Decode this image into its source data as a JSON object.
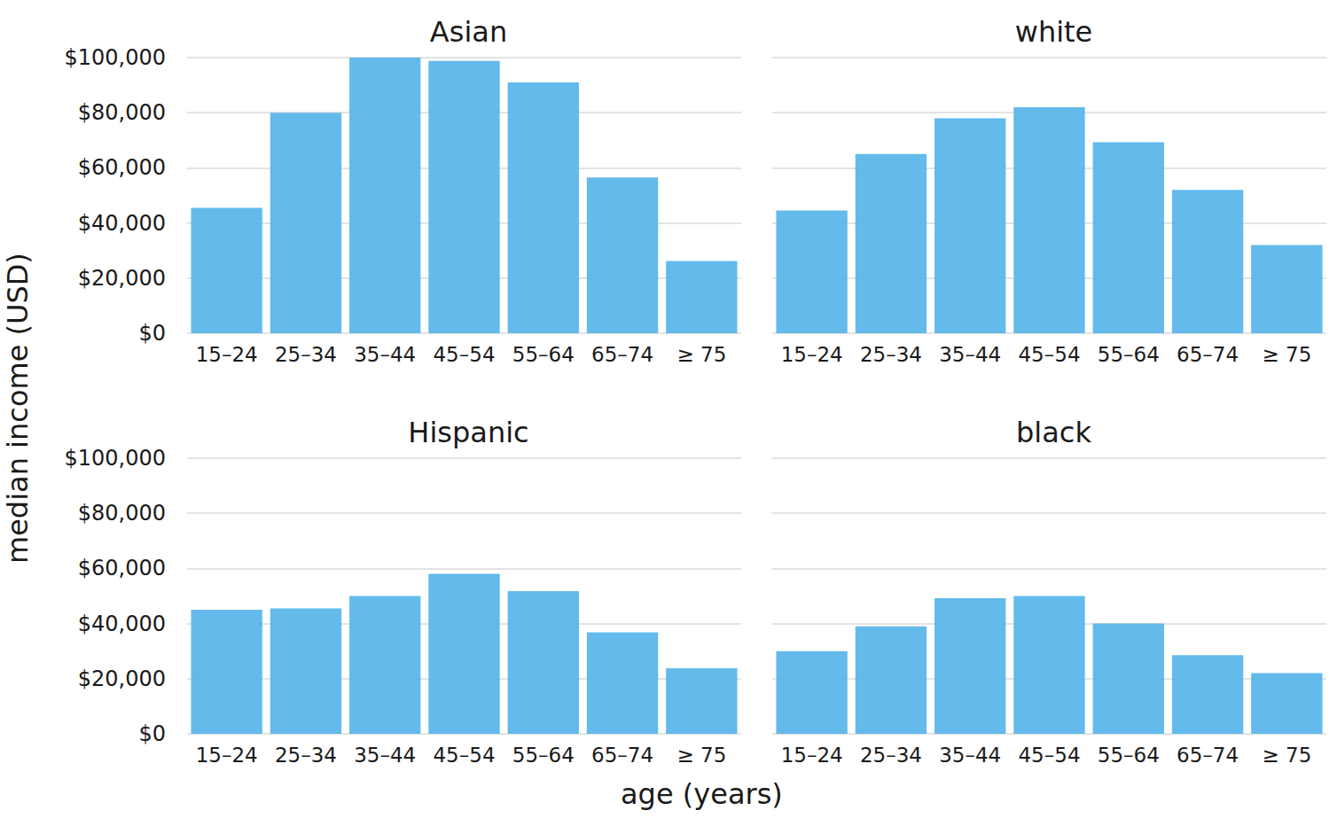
{
  "x_label": "age (years)",
  "y_label": "median income (USD)",
  "chart_data": [
    {
      "type": "bar",
      "title": "Asian",
      "categories": [
        "15–24",
        "25–34",
        "35–44",
        "45–54",
        "55–64",
        "65–74",
        "≥ 75"
      ],
      "values": [
        45500,
        80000,
        100000,
        98800,
        91000,
        56500,
        26200
      ],
      "color": "#56B4E9",
      "ylim": [
        0,
        100000
      ],
      "yticks": [
        {
          "value": 0,
          "label": "$0"
        },
        {
          "value": 20000,
          "label": "$20,000"
        },
        {
          "value": 40000,
          "label": "$40,000"
        },
        {
          "value": 60000,
          "label": "$60,000"
        },
        {
          "value": 80000,
          "label": "$80,000"
        },
        {
          "value": 100000,
          "label": "$100,000"
        }
      ],
      "grid": true
    },
    {
      "type": "bar",
      "title": "white",
      "categories": [
        "15–24",
        "25–34",
        "35–44",
        "45–54",
        "55–64",
        "65–74",
        "≥ 75"
      ],
      "values": [
        44500,
        65000,
        78000,
        82000,
        69300,
        52000,
        32000
      ],
      "color": "#56B4E9",
      "ylim": [
        0,
        100000
      ],
      "yticks": [
        {
          "value": 0,
          "label": "$0"
        },
        {
          "value": 20000,
          "label": "$20,000"
        },
        {
          "value": 40000,
          "label": "$40,000"
        },
        {
          "value": 60000,
          "label": "$60,000"
        },
        {
          "value": 80000,
          "label": "$80,000"
        },
        {
          "value": 100000,
          "label": "$100,000"
        }
      ],
      "grid": true,
      "tick_labels": "x"
    },
    {
      "type": "bar",
      "title": "Hispanic",
      "categories": [
        "15–24",
        "25–34",
        "35–44",
        "45–54",
        "55–64",
        "65–74",
        "≥ 75"
      ],
      "values": [
        45000,
        45500,
        50000,
        58000,
        51800,
        36800,
        23800
      ],
      "color": "#56B4E9",
      "ylim": [
        0,
        100000
      ],
      "yticks": [
        {
          "value": 0,
          "label": "$0"
        },
        {
          "value": 20000,
          "label": "$20,000"
        },
        {
          "value": 40000,
          "label": "$40,000"
        },
        {
          "value": 60000,
          "label": "$60,000"
        },
        {
          "value": 80000,
          "label": "$80,000"
        },
        {
          "value": 100000,
          "label": "$100,000"
        }
      ],
      "grid": true
    },
    {
      "type": "bar",
      "title": "black",
      "categories": [
        "15–24",
        "25–34",
        "35–44",
        "45–54",
        "55–64",
        "65–74",
        "≥ 75"
      ],
      "values": [
        30000,
        39000,
        49200,
        50000,
        40000,
        28500,
        22000
      ],
      "color": "#56B4E9",
      "ylim": [
        0,
        100000
      ],
      "yticks": [
        {
          "value": 0,
          "label": "$0"
        },
        {
          "value": 20000,
          "label": "$20,000"
        },
        {
          "value": 40000,
          "label": "$40,000"
        },
        {
          "value": 60000,
          "label": "$60,000"
        },
        {
          "value": 80000,
          "label": "$80,000"
        },
        {
          "value": 100000,
          "label": "$100,000"
        }
      ],
      "grid": true,
      "tick_labels": "x"
    }
  ]
}
